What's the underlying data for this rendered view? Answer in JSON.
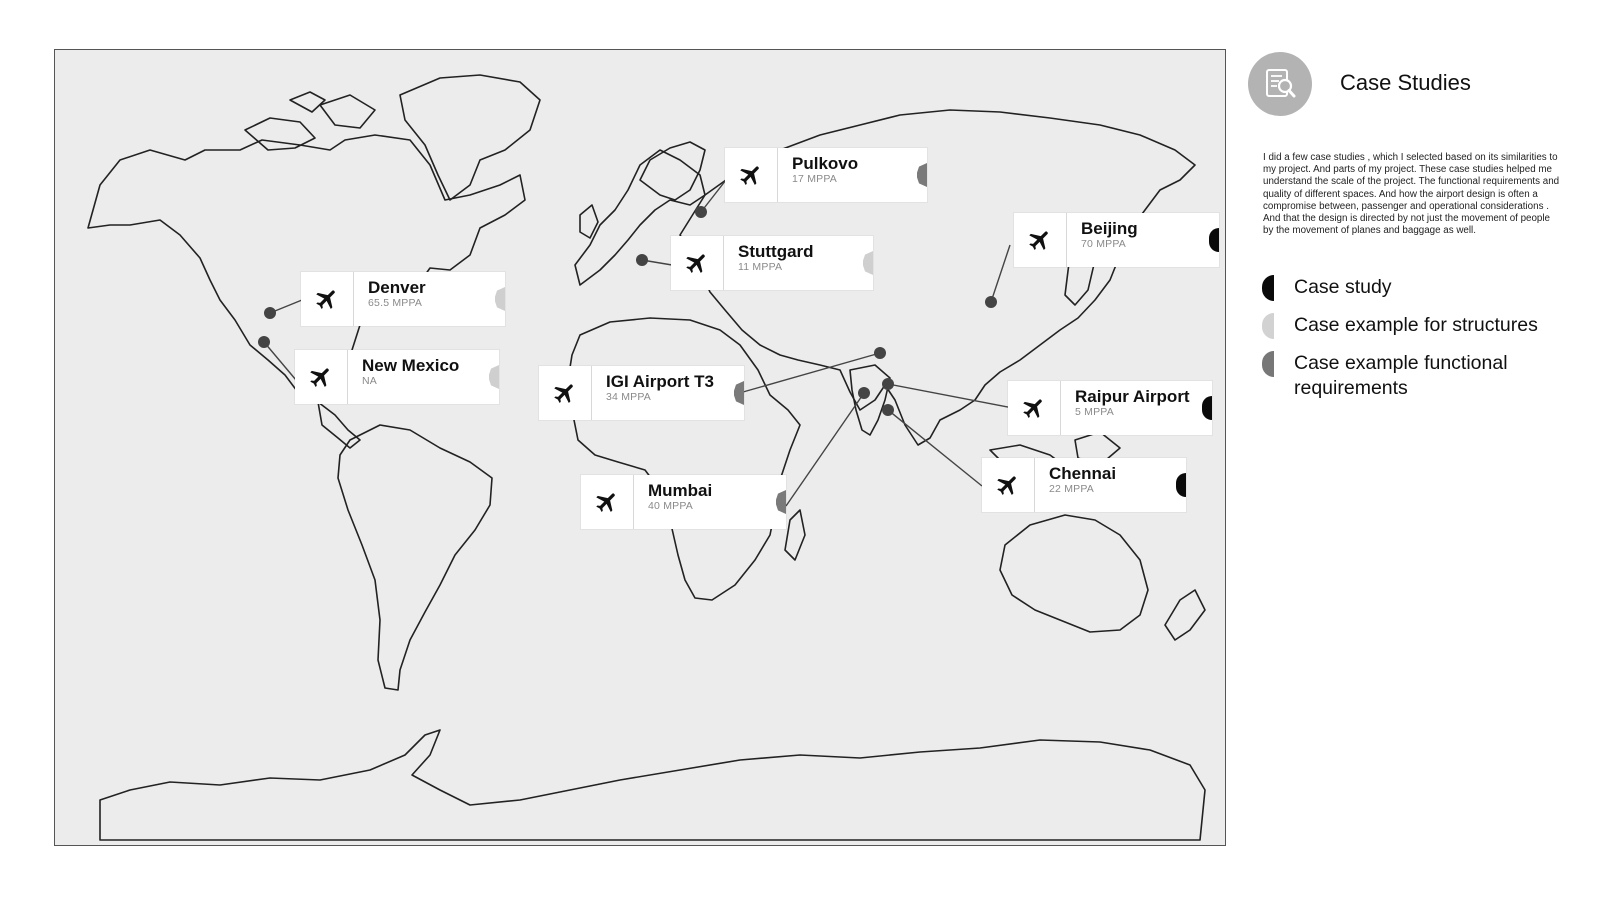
{
  "sidebar": {
    "title": "Case Studies",
    "icon": "document-search-icon",
    "description": "I did a few case studies , which I selected based on its similarities to my project. And parts of my project. These case studies helped me understand the scale of the project. The functional requirements and quality of different spaces. And how the airport design is often a compromise between, passenger and operational considerations . And that the design is directed by not just the movement of people by the movement of planes and baggage as well.",
    "legend": [
      {
        "label": "Case study",
        "swatch": "#0a0a0a"
      },
      {
        "label": "Case example for structures",
        "swatch": "#d2d2d2"
      },
      {
        "label": "Case example functional requirements",
        "swatch": "#777777"
      }
    ]
  },
  "map": {
    "background": "#ececec",
    "airports": [
      {
        "name": "Pulkovo",
        "caption": "17 MPPA",
        "category": "Case example functional requirements"
      },
      {
        "name": "Stuttgard",
        "caption": "11 MPPA",
        "category": "Case example for structures"
      },
      {
        "name": "Beijing",
        "caption": "70 MPPA",
        "category": "Case study"
      },
      {
        "name": "Denver",
        "caption": "65.5 MPPA",
        "category": "Case example for structures"
      },
      {
        "name": "New Mexico",
        "caption": "NA",
        "category": "Case example for structures"
      },
      {
        "name": "IGI Airport T3",
        "caption": "34 MPPA",
        "category": "Case example functional requirements"
      },
      {
        "name": "Raipur Airport",
        "caption": "5 MPPA",
        "category": "Case study"
      },
      {
        "name": "Chennai",
        "caption": "22 MPPA",
        "category": "Case study"
      },
      {
        "name": "Mumbai",
        "caption": "40 MPPA",
        "category": "Case example functional requirements"
      }
    ]
  }
}
